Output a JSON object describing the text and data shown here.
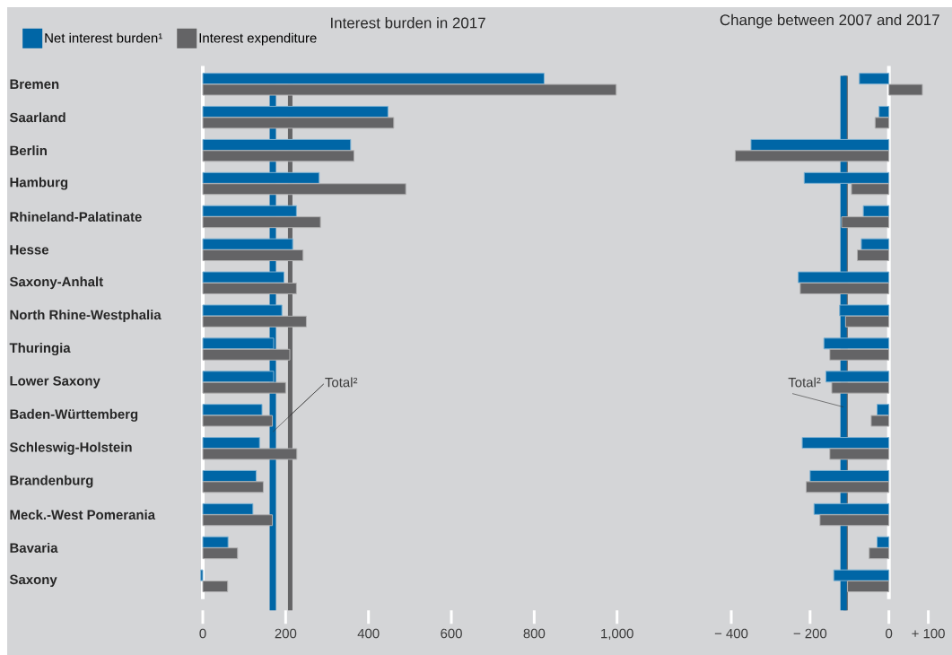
{
  "chart_data": [
    {
      "type": "bar",
      "orientation": "horizontal",
      "title": "Interest burden in 2017",
      "categories": [
        "Bremen",
        "Saarland",
        "Berlin",
        "Hamburg",
        "Rhineland-Palatinate",
        "Hesse",
        "Saxony-Anhalt",
        "North Rhine-Westphalia",
        "Thuringia",
        "Lower Saxony",
        "Baden-Württemberg",
        "Schleswig-Holstein",
        "Brandenburg",
        "Meck.-West Pomerania",
        "Bavaria",
        "Saxony"
      ],
      "series": [
        {
          "name": "Net interest burden¹",
          "color": "#0066a6",
          "values": [
            824,
            447,
            357,
            281,
            226,
            217,
            196,
            191,
            171,
            171,
            143,
            137,
            129,
            121,
            61,
            -5
          ]
        },
        {
          "name": "Interest expenditure",
          "color": "#646466",
          "values": [
            998,
            461,
            365,
            490,
            284,
            242,
            226,
            250,
            210,
            200,
            168,
            227,
            146,
            168,
            84,
            60
          ]
        }
      ],
      "xlim": [
        -10,
        1000
      ],
      "xticks": [
        0,
        200,
        400,
        600,
        800,
        {
          "value": 1000,
          "label": "1,000"
        }
      ],
      "ref_lines": [
        {
          "axis": "x",
          "value": 169,
          "color": "#0066a6"
        },
        {
          "axis": "x",
          "value": 211,
          "color": "#646466"
        }
      ],
      "annotations": [
        {
          "text": "Total²",
          "x": 211,
          "y": "Baden-Württemberg"
        }
      ],
      "legend": "top left"
    },
    {
      "type": "bar",
      "orientation": "horizontal",
      "title": "Change between 2007 and 2017",
      "categories": [
        "Bremen",
        "Saarland",
        "Berlin",
        "Hamburg",
        "Rhineland-Palatinate",
        "Hesse",
        "Saxony-Anhalt",
        "North Rhine-Westphalia",
        "Thuringia",
        "Lower Saxony",
        "Baden-Württemberg",
        "Schleswig-Holstein",
        "Brandenburg",
        "Meck.-West Pomerania",
        "Bavaria",
        "Saxony"
      ],
      "series": [
        {
          "color": "#0066a6",
          "values": [
            -75,
            -25,
            -350,
            -215,
            -65,
            -70,
            -230,
            -125,
            -165,
            -160,
            -30,
            -220,
            -200,
            -190,
            -30,
            -140
          ]
        },
        {
          "color": "#646466",
          "values": [
            85,
            -35,
            -390,
            -95,
            -120,
            -80,
            -225,
            -110,
            -150,
            -145,
            -45,
            -150,
            -210,
            -175,
            -50,
            -105
          ]
        }
      ],
      "xlim": [
        -400,
        100
      ],
      "xticks": [
        {
          "value": -400,
          "label": "− 400"
        },
        {
          "value": -200,
          "label": "− 200"
        },
        0,
        {
          "value": 100,
          "label": "+ 100"
        }
      ],
      "ref_lines": [
        {
          "axis": "x",
          "value": -110,
          "color": "#646466"
        },
        {
          "axis": "x",
          "value": -115,
          "color": "#0066a6"
        }
      ],
      "annotations": [
        {
          "text": "Total²",
          "x": -115,
          "y": "Baden-Württemberg"
        }
      ],
      "tick_labels": "x"
    }
  ]
}
